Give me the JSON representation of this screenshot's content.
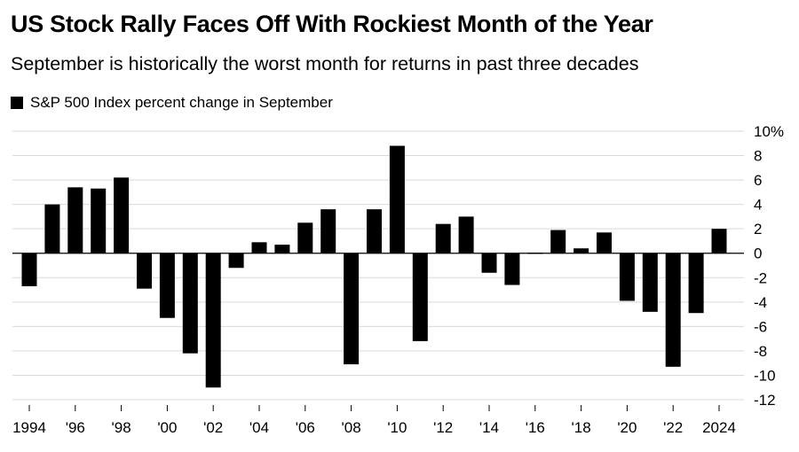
{
  "header": {
    "title": "US Stock Rally Faces Off With Rockiest Month of the Year",
    "subtitle": "September is historically the worst month for returns in past three decades"
  },
  "legend": {
    "label": "S&P 500 Index percent change in September",
    "color": "#000000"
  },
  "colors": {
    "bar": "#000000",
    "grid": "#d9d9d9",
    "zero_line": "#000000"
  },
  "chart_data": {
    "type": "bar",
    "title": "US Stock Rally Faces Off With Rockiest Month of the Year",
    "subtitle": "September is historically the worst month for returns in past three decades",
    "xlabel": "",
    "ylabel": "",
    "ylim": [
      -12,
      10
    ],
    "y_axis_position": "right",
    "grid": true,
    "legend_position": "top-left",
    "ytick_values": [
      10,
      8,
      6,
      4,
      2,
      0,
      -2,
      -4,
      -6,
      -8,
      -10,
      -12
    ],
    "ytick_labels": [
      "10%",
      "8",
      "6",
      "4",
      "2",
      "0",
      "-2",
      "-4",
      "-6",
      "-8",
      "-10",
      "-12"
    ],
    "xtick_labels": [
      {
        "year": 1994,
        "label": "1994"
      },
      {
        "year": 1996,
        "label": "'96"
      },
      {
        "year": 1998,
        "label": "'98"
      },
      {
        "year": 2000,
        "label": "'00"
      },
      {
        "year": 2002,
        "label": "'02"
      },
      {
        "year": 2004,
        "label": "'04"
      },
      {
        "year": 2006,
        "label": "'06"
      },
      {
        "year": 2008,
        "label": "'08"
      },
      {
        "year": 2010,
        "label": "'10"
      },
      {
        "year": 2012,
        "label": "'12"
      },
      {
        "year": 2014,
        "label": "'14"
      },
      {
        "year": 2016,
        "label": "'16"
      },
      {
        "year": 2018,
        "label": "'18"
      },
      {
        "year": 2020,
        "label": "'20"
      },
      {
        "year": 2022,
        "label": "'22"
      },
      {
        "year": 2024,
        "label": "2024"
      }
    ],
    "series": [
      {
        "name": "S&P 500 Index percent change in September",
        "points": [
          {
            "year": 1994,
            "value": -2.7
          },
          {
            "year": 1995,
            "value": 4.0
          },
          {
            "year": 1996,
            "value": 5.4
          },
          {
            "year": 1997,
            "value": 5.3
          },
          {
            "year": 1998,
            "value": 6.2
          },
          {
            "year": 1999,
            "value": -2.9
          },
          {
            "year": 2000,
            "value": -5.3
          },
          {
            "year": 2001,
            "value": -8.2
          },
          {
            "year": 2002,
            "value": -11.0
          },
          {
            "year": 2003,
            "value": -1.2
          },
          {
            "year": 2004,
            "value": 0.9
          },
          {
            "year": 2005,
            "value": 0.7
          },
          {
            "year": 2006,
            "value": 2.5
          },
          {
            "year": 2007,
            "value": 3.6
          },
          {
            "year": 2008,
            "value": -9.1
          },
          {
            "year": 2009,
            "value": 3.6
          },
          {
            "year": 2010,
            "value": 8.8
          },
          {
            "year": 2011,
            "value": -7.2
          },
          {
            "year": 2012,
            "value": 2.4
          },
          {
            "year": 2013,
            "value": 3.0
          },
          {
            "year": 2014,
            "value": -1.6
          },
          {
            "year": 2015,
            "value": -2.6
          },
          {
            "year": 2016,
            "value": -0.1
          },
          {
            "year": 2017,
            "value": 1.9
          },
          {
            "year": 2018,
            "value": 0.4
          },
          {
            "year": 2019,
            "value": 1.7
          },
          {
            "year": 2020,
            "value": -3.9
          },
          {
            "year": 2021,
            "value": -4.8
          },
          {
            "year": 2022,
            "value": -9.3
          },
          {
            "year": 2023,
            "value": -4.9
          },
          {
            "year": 2024,
            "value": 2.0
          }
        ]
      }
    ]
  }
}
